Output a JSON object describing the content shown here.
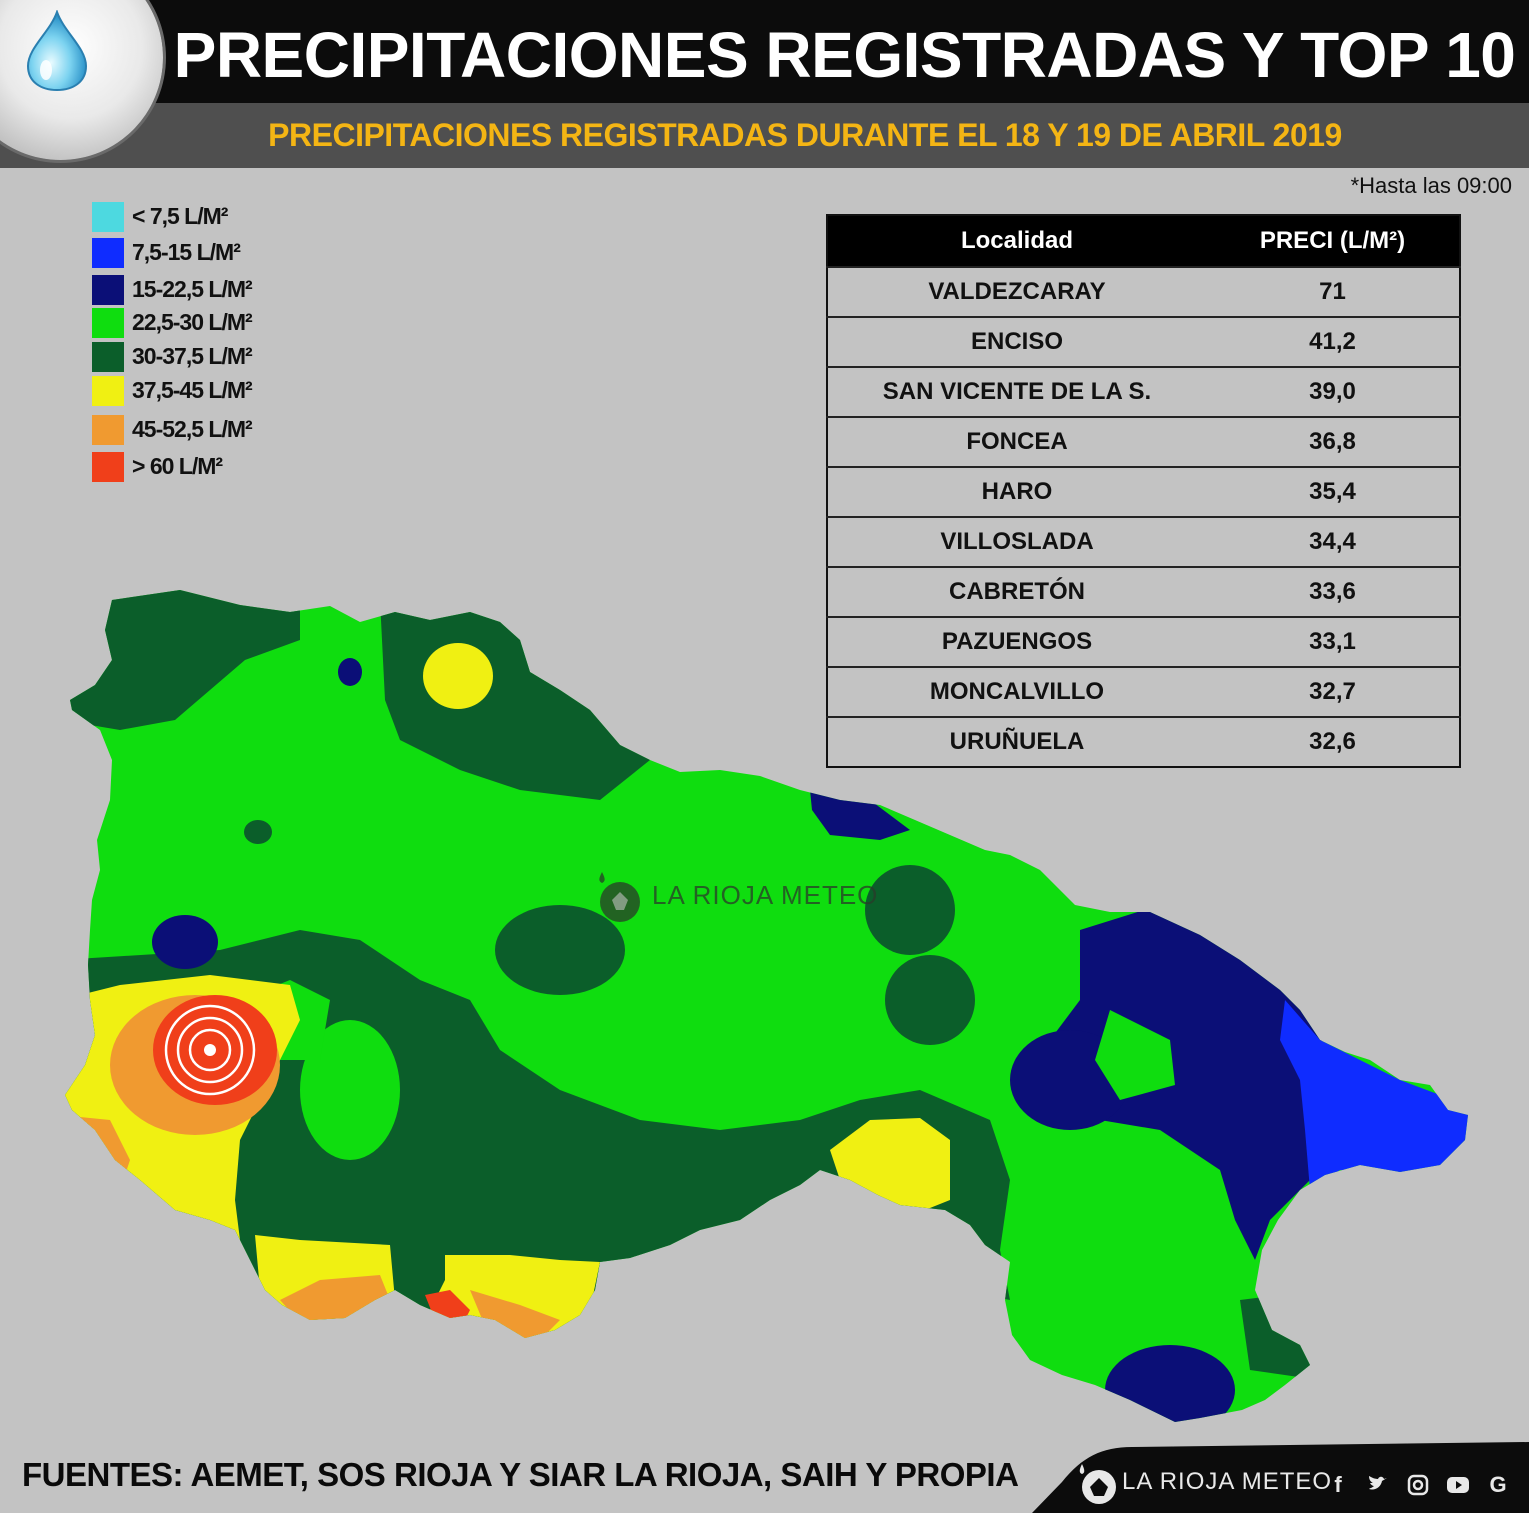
{
  "header": {
    "title": "PRECIPITACIONES REGISTRADAS Y TOP 10",
    "subtitle": "PRECIPITACIONES REGISTRADAS DURANTE EL 18 Y 19 DE ABRIL 2019",
    "icon": "water-drop-icon"
  },
  "note": "*Hasta las 09:00",
  "legend": [
    {
      "label": "< 7,5 L/M²",
      "color": "#4dd9e0"
    },
    {
      "label": "7,5-15 L/M²",
      "color": "#0f2cff"
    },
    {
      "label": "15-22,5 L/M²",
      "color": "#0b0f77"
    },
    {
      "label": "22,5-30 L/M²",
      "color": "#0fdd0f"
    },
    {
      "label": "30-37,5 L/M²",
      "color": "#0b5e2a"
    },
    {
      "label": "37,5-45 L/M²",
      "color": "#f0f012"
    },
    {
      "label": "45-52,5 L/M²",
      "color": "#f09a30"
    },
    {
      "label": "> 60 L/M²",
      "color": "#f03f1a"
    }
  ],
  "table": {
    "headers": [
      "Localidad",
      "PRECI (L/M²)"
    ],
    "rows": [
      {
        "locality": "VALDEZCARAY",
        "value": "71"
      },
      {
        "locality": "ENCISO",
        "value": "41,2"
      },
      {
        "locality": "SAN VICENTE DE LA S.",
        "value": "39,0"
      },
      {
        "locality": "FONCEA",
        "value": "36,8"
      },
      {
        "locality": "HARO",
        "value": "35,4"
      },
      {
        "locality": "VILLOSLADA",
        "value": "34,4"
      },
      {
        "locality": "CABRETÓN",
        "value": "33,6"
      },
      {
        "locality": "PAZUENGOS",
        "value": "33,1"
      },
      {
        "locality": "MONCALVILLO",
        "value": "32,7"
      },
      {
        "locality": "URUÑUELA",
        "value": "32,6"
      }
    ]
  },
  "watermark": "LA RIOJA METEO",
  "footer": {
    "sources": "FUENTES: AEMET, SOS RIOJA Y SIAR LA RIOJA, SAIH Y PROPIA",
    "brand": "LA RIOJA METEO",
    "social_icons": [
      "facebook-icon",
      "twitter-icon",
      "instagram-icon",
      "youtube-icon",
      "google-icon"
    ]
  }
}
